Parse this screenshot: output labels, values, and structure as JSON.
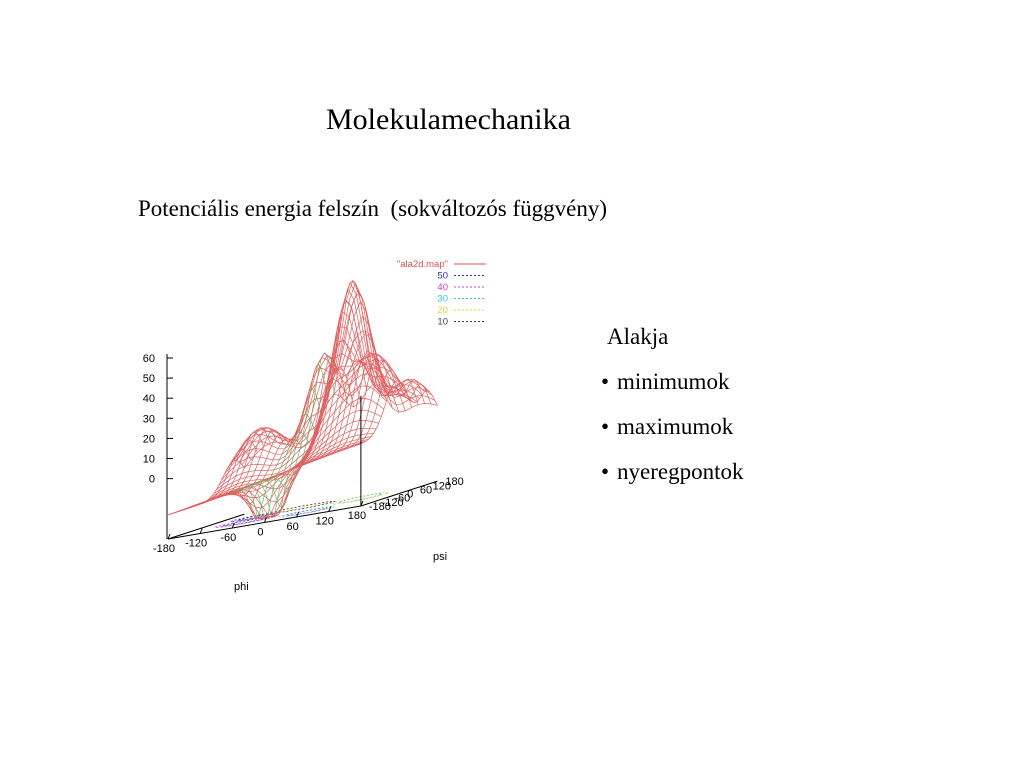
{
  "slide": {
    "title": "Molekulamechanika",
    "subtitle": "Potenciális energia felszín  (sokváltozós függvény)"
  },
  "figure": {
    "legend": [
      {
        "label": "\"ala2d.map\"",
        "color": "#e05050",
        "dash": "solid"
      },
      {
        "label": "50",
        "color": "#3030c0",
        "dash": "dashed"
      },
      {
        "label": "40",
        "color": "#d040d0",
        "dash": "dashed"
      },
      {
        "label": "30",
        "color": "#30c8d8",
        "dash": "dashed"
      },
      {
        "label": "20",
        "color": "#e8d040",
        "dash": "dashed"
      },
      {
        "label": "10",
        "color": "#404060",
        "dash": "dashed"
      }
    ],
    "z_ticks": [
      "60",
      "50",
      "40",
      "30",
      "20",
      "10",
      "0"
    ],
    "x_axis": {
      "label": "phi",
      "ticks": [
        "-180",
        "-120",
        "-60",
        "0",
        "60",
        "120",
        "180"
      ]
    },
    "y_axis": {
      "label": "psi",
      "ticks": [
        "180",
        "120",
        "60",
        "0",
        "-60",
        "-120",
        "-180"
      ]
    },
    "surface_color": "#e06060",
    "highlight_color": "#60c060"
  },
  "aside": {
    "heading": "Alakja",
    "bullet": "•",
    "items": [
      "minimumok",
      "maximumok",
      "nyeregpontok"
    ]
  }
}
